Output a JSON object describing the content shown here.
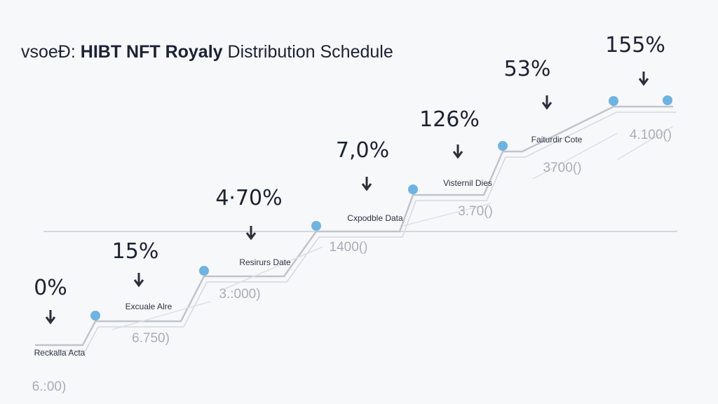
{
  "header": {
    "prefix": "vsoeÐ:",
    "title_bold": "HIBT NFT Royaly",
    "title_rest": "Distribution Schedule"
  },
  "steps": [
    {
      "percent": "0%",
      "label": "Reckalla Acta",
      "amount": "6.:00)"
    },
    {
      "percent": "15%",
      "label": "Excuale Alre",
      "amount": "6.750)"
    },
    {
      "percent": "4·70%",
      "label": "Resirurs Date",
      "amount": "3.:000)"
    },
    {
      "percent": "7,0%",
      "label": "Cxpodble Data",
      "amount": "1400()"
    },
    {
      "percent": "126%",
      "label": "Visternil Dies",
      "amount": "3.70()"
    },
    {
      "percent": "53%",
      "label": "Faiturdir Cote",
      "amount": "3700()"
    },
    {
      "percent": "155%",
      "amount": "4.100()"
    }
  ]
}
